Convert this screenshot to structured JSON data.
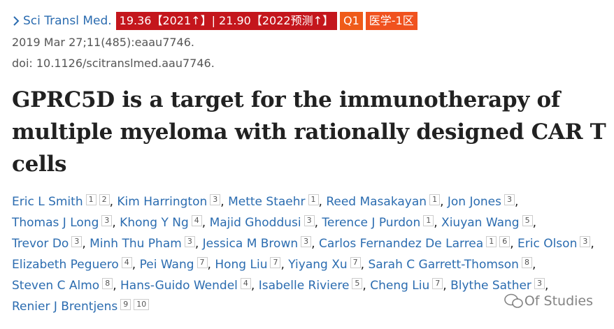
{
  "header": {
    "journal": "Sci Transl Med.",
    "badges": [
      "19.36【2021↑】| 21.90【2022预测↑】",
      "Q1",
      "医学-1区"
    ],
    "citation": "2019 Mar 27;11(485):eaau7746.",
    "doi": "doi: 10.1126/scitranslmed.aau7746."
  },
  "title": "GPRC5D is a target for the immunotherapy of multiple myeloma with rationally designed CAR T cells",
  "author_separator": ",",
  "authors": [
    {
      "name": "Eric L Smith",
      "affiliations": [
        "1",
        "2"
      ]
    },
    {
      "name": "Kim Harrington",
      "affiliations": [
        "3"
      ]
    },
    {
      "name": "Mette Staehr",
      "affiliations": [
        "1"
      ]
    },
    {
      "name": "Reed Masakayan",
      "affiliations": [
        "1"
      ]
    },
    {
      "name": "Jon Jones",
      "affiliations": [
        "3"
      ]
    },
    {
      "name": "Thomas J Long",
      "affiliations": [
        "3"
      ]
    },
    {
      "name": "Khong Y Ng",
      "affiliations": [
        "4"
      ]
    },
    {
      "name": "Majid Ghoddusi",
      "affiliations": [
        "3"
      ]
    },
    {
      "name": "Terence J Purdon",
      "affiliations": [
        "1"
      ]
    },
    {
      "name": "Xiuyan Wang",
      "affiliations": [
        "5"
      ]
    },
    {
      "name": "Trevor Do",
      "affiliations": [
        "3"
      ]
    },
    {
      "name": "Minh Thu Pham",
      "affiliations": [
        "3"
      ]
    },
    {
      "name": "Jessica M Brown",
      "affiliations": [
        "3"
      ]
    },
    {
      "name": "Carlos Fernandez De Larrea",
      "affiliations": [
        "1",
        "6"
      ]
    },
    {
      "name": "Eric Olson",
      "affiliations": [
        "3"
      ]
    },
    {
      "name": "Elizabeth Peguero",
      "affiliations": [
        "4"
      ]
    },
    {
      "name": "Pei Wang",
      "affiliations": [
        "7"
      ]
    },
    {
      "name": "Hong Liu",
      "affiliations": [
        "7"
      ]
    },
    {
      "name": "Yiyang Xu",
      "affiliations": [
        "7"
      ]
    },
    {
      "name": "Sarah C Garrett-Thomson",
      "affiliations": [
        "8"
      ]
    },
    {
      "name": "Steven C Almo",
      "affiliations": [
        "8"
      ]
    },
    {
      "name": "Hans-Guido Wendel",
      "affiliations": [
        "4"
      ]
    },
    {
      "name": "Isabelle Riviere",
      "affiliations": [
        "5"
      ]
    },
    {
      "name": "Cheng Liu",
      "affiliations": [
        "7"
      ]
    },
    {
      "name": "Blythe Sather",
      "affiliations": [
        "3"
      ]
    },
    {
      "name": "Renier J Brentjens",
      "affiliations": [
        "9",
        "10"
      ]
    }
  ],
  "watermark": "Of Studies"
}
